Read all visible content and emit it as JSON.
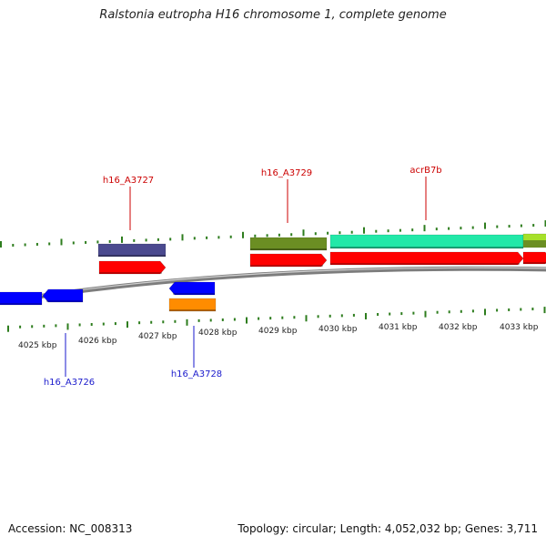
{
  "header": {
    "title": "Ralstonia eutropha H16 chromosome 1, complete genome"
  },
  "footer": {
    "accession": "Accession: NC_008313",
    "summary": "Topology: circular; Length: 4,052,032 bp; Genes: 3,711"
  },
  "map": {
    "unit": "kbp",
    "tick_labels": [
      "4025 kbp",
      "4026 kbp",
      "4027 kbp",
      "4028 kbp",
      "4029 kbp",
      "4030 kbp",
      "4031 kbp",
      "4032 kbp",
      "4033 kbp"
    ],
    "gene_labels": [
      {
        "text": "h16_A3727",
        "color": "#cc0000"
      },
      {
        "text": "h16_A3729",
        "color": "#cc0000"
      },
      {
        "text": "acrB7b",
        "color": "#cc0000"
      },
      {
        "text": "h16_A3726",
        "color": "#1a1acc"
      },
      {
        "text": "h16_A3728",
        "color": "#1a1acc"
      }
    ],
    "colors": {
      "backbone": "#808080",
      "tick": "#2e7d1e",
      "forward_cds": "#ff0000",
      "reverse_cds": "#0000ff",
      "slate_feature": "#4b4a8f",
      "olive_feature": "#6b8e23",
      "aquamarine_feature": "#22e8a8",
      "lime_feature": "#a6e02a",
      "orange_feature": "#ff8c00"
    }
  }
}
